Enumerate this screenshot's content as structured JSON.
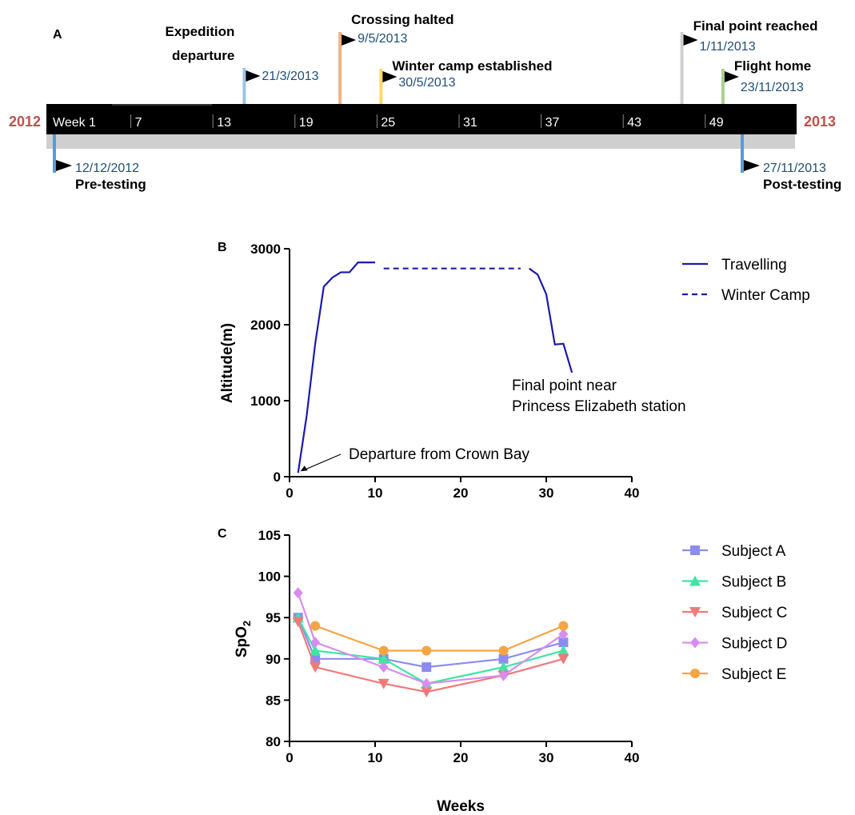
{
  "panelA": {
    "letter": "A",
    "year_start": "2012",
    "year_end": "2013",
    "weeks": [
      "Week 1",
      "7",
      "13",
      "19",
      "25",
      "31",
      "37",
      "43",
      "49"
    ],
    "events_above": [
      {
        "title_lines": [
          "Expedition",
          "departure"
        ],
        "date": "21/3/2013",
        "week": 15,
        "color": "#9dc3e6"
      },
      {
        "title_lines": [
          "Crossing halted"
        ],
        "date": "9/5/2013",
        "week": 22,
        "color": "#f4b183"
      },
      {
        "title_lines": [
          "Winter camp established"
        ],
        "date": "30/5/2013",
        "week": 25,
        "color": "#ffd966"
      },
      {
        "title_lines": [
          "Final point reached"
        ],
        "date": "1/11/2013",
        "week": 47,
        "color": "#d0cece"
      },
      {
        "title_lines": [
          "Flight home"
        ],
        "date": "23/11/2013",
        "week": 50,
        "color": "#a9d18e"
      }
    ],
    "events_below": [
      {
        "title": "Pre-testing",
        "date": "12/12/2012",
        "week": 1,
        "color": "#5b9bd5"
      },
      {
        "title": "Post-testing",
        "date": "27/11/2013",
        "week": 51,
        "color": "#5b9bd5"
      }
    ]
  },
  "chart_data": [
    {
      "type": "line",
      "panel": "B",
      "xlabel": "",
      "ylabel": "Altitude(m)",
      "xlim": [
        0,
        40
      ],
      "ylim": [
        0,
        3000
      ],
      "xticks": [
        0,
        10,
        20,
        30,
        40
      ],
      "yticks": [
        0,
        1000,
        2000,
        3000
      ],
      "legend_position": "top-right",
      "series": [
        {
          "name": "Travelling",
          "style": "solid",
          "color": "#1a1aad",
          "x": [
            1,
            2,
            3,
            4,
            5,
            6,
            7,
            8,
            9,
            10
          ],
          "y": [
            50,
            800,
            1750,
            2500,
            2620,
            2690,
            2690,
            2820,
            2820,
            2820
          ]
        },
        {
          "name": "Winter Camp",
          "style": "dashed",
          "color": "#1a1aad",
          "x": [
            11,
            27
          ],
          "y": [
            2740,
            2740
          ]
        },
        {
          "name": "Travelling",
          "style": "solid",
          "color": "#1a1aad",
          "legend": false,
          "x": [
            28,
            29,
            30,
            31,
            32,
            33
          ],
          "y": [
            2740,
            2660,
            2400,
            1740,
            1750,
            1370
          ]
        }
      ],
      "annotations": [
        {
          "text": "Departure from Crown Bay",
          "x": 1,
          "y": 50
        },
        {
          "text_lines": [
            "Final point near",
            "Princess Elizabeth station"
          ],
          "x": 33,
          "y": 1370
        }
      ]
    },
    {
      "type": "line",
      "panel": "C",
      "xlabel": "Weeks",
      "ylabel": "SpO2",
      "ylabel_main": "SpO",
      "ylabel_sub": "2",
      "xlim": [
        0,
        40
      ],
      "ylim": [
        80,
        105
      ],
      "xticks": [
        0,
        10,
        20,
        30,
        40
      ],
      "yticks": [
        80,
        85,
        90,
        95,
        100,
        105
      ],
      "legend_position": "top-right",
      "x": [
        1,
        3,
        11,
        16,
        25,
        32
      ],
      "series": [
        {
          "name": "Subject A",
          "color": "#8c8cf0",
          "marker": "square",
          "values": [
            95,
            90,
            90,
            89,
            90,
            92
          ]
        },
        {
          "name": "Subject B",
          "color": "#3ee6a3",
          "marker": "triangle-up",
          "values": [
            95,
            91,
            90,
            87,
            89,
            91
          ]
        },
        {
          "name": "Subject C",
          "color": "#f07a7a",
          "marker": "triangle-down",
          "values": [
            94.5,
            89,
            87,
            86,
            88,
            90
          ]
        },
        {
          "name": "Subject D",
          "color": "#d98cf0",
          "marker": "diamond",
          "values": [
            98,
            92,
            89,
            87,
            88,
            93
          ]
        },
        {
          "name": "Subject E",
          "color": "#f7a443",
          "marker": "circle",
          "values": [
            null,
            94,
            91,
            91,
            91,
            94
          ]
        }
      ]
    }
  ]
}
